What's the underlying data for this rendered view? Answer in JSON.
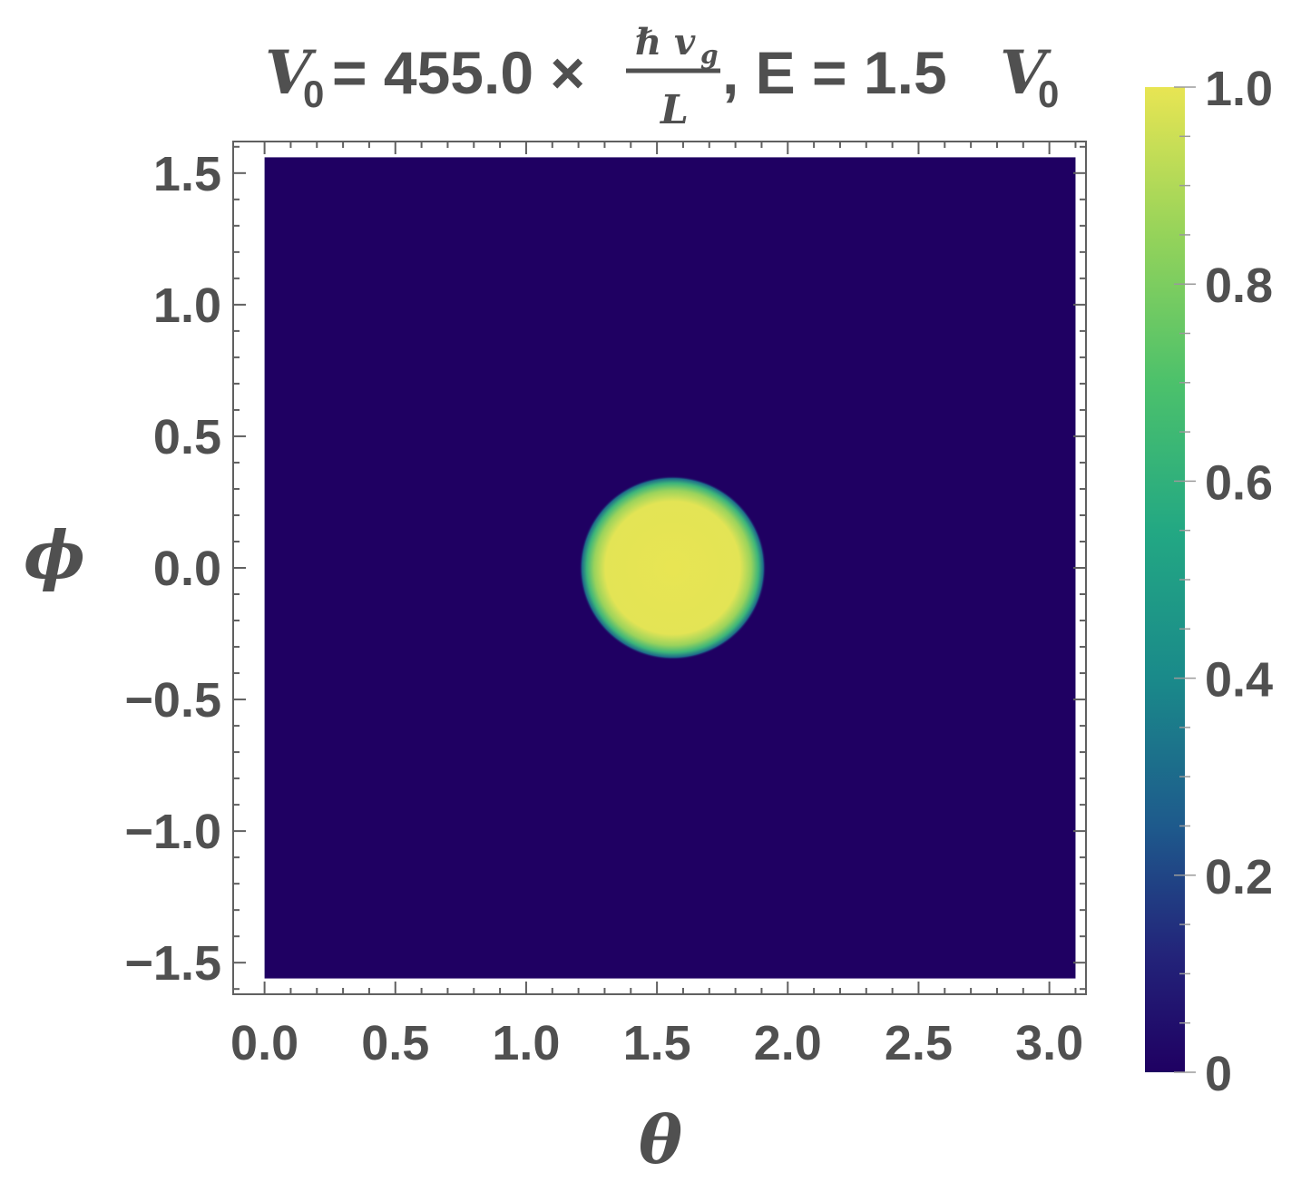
{
  "chart_data": {
    "type": "heatmap",
    "title": {
      "v_symbol": "V",
      "v_sub": "0",
      "eq_value": "= 455.0 ×",
      "frac_numerator": "ℏ v",
      "frac_num_sub": "g",
      "frac_denominator": "L",
      "energy_part": ", E = 1.5",
      "v2_symbol": "V",
      "v2_sub": "0"
    },
    "xlabel": "θ",
    "ylabel": "ϕ",
    "xlim": [
      -0.12,
      3.14
    ],
    "ylim": [
      -1.62,
      1.62
    ],
    "data_extent": {
      "x": [
        0.0,
        3.1
      ],
      "y": [
        -1.56,
        1.56
      ]
    },
    "x_ticks": [
      "0.0",
      "0.5",
      "1.0",
      "1.5",
      "2.0",
      "2.5",
      "3.0"
    ],
    "x_tick_values": [
      0.0,
      0.5,
      1.0,
      1.5,
      2.0,
      2.5,
      3.0
    ],
    "y_ticks": [
      "1.5",
      "1.0",
      "0.5",
      "0.0",
      "−0.5",
      "−1.0",
      "−1.5"
    ],
    "y_tick_values": [
      1.5,
      1.0,
      0.5,
      0.0,
      -0.5,
      -1.0,
      -1.5
    ],
    "spot": {
      "center_theta": 1.56,
      "center_phi": 0.0,
      "radius": 0.35,
      "peak_value": 1.0,
      "background_value": 0.0
    },
    "colorbar": {
      "min": 0,
      "max": 1,
      "tick_labels": [
        "1.0",
        "0.8",
        "0.6",
        "0.4",
        "0.2",
        "0"
      ],
      "tick_values": [
        1.0,
        0.8,
        0.6,
        0.4,
        0.2,
        0.0
      ],
      "colormap": "viridis"
    },
    "colors": {
      "low": "#1f0062",
      "mid": "#1f9e89",
      "high": "#e8e553",
      "text": "#505050",
      "frame": "#606060"
    }
  }
}
